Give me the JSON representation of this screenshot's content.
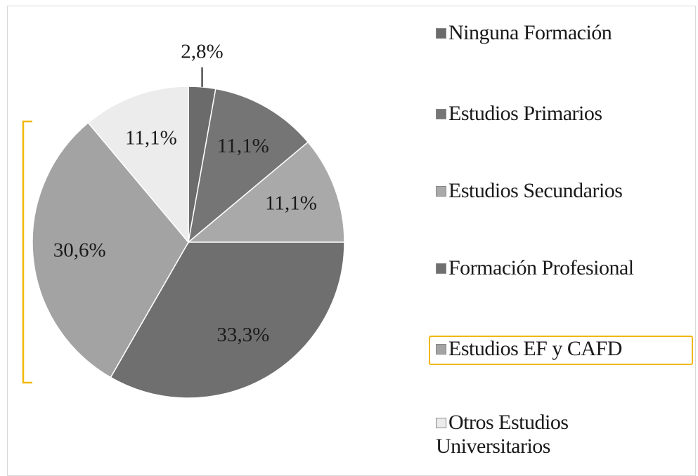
{
  "chart_data": {
    "type": "pie",
    "categories": [
      "Ninguna Formación",
      "Estudios Primarios",
      "Estudios Secundarios",
      "Formación Profesional",
      "Estudios EF y  CAFD",
      "Otros Estudios Universitarios"
    ],
    "values": [
      2.8,
      11.1,
      11.1,
      33.3,
      30.6,
      11.1
    ],
    "value_labels": [
      "2,8%",
      "11,1%",
      "11,1%",
      "33,3%",
      "30,6%",
      "11,1%"
    ],
    "colors": [
      "#6b6b6b",
      "#757575",
      "#a9a9a9",
      "#6f6f6f",
      "#a3a3a3",
      "#ececec"
    ],
    "legend": "right"
  }
}
